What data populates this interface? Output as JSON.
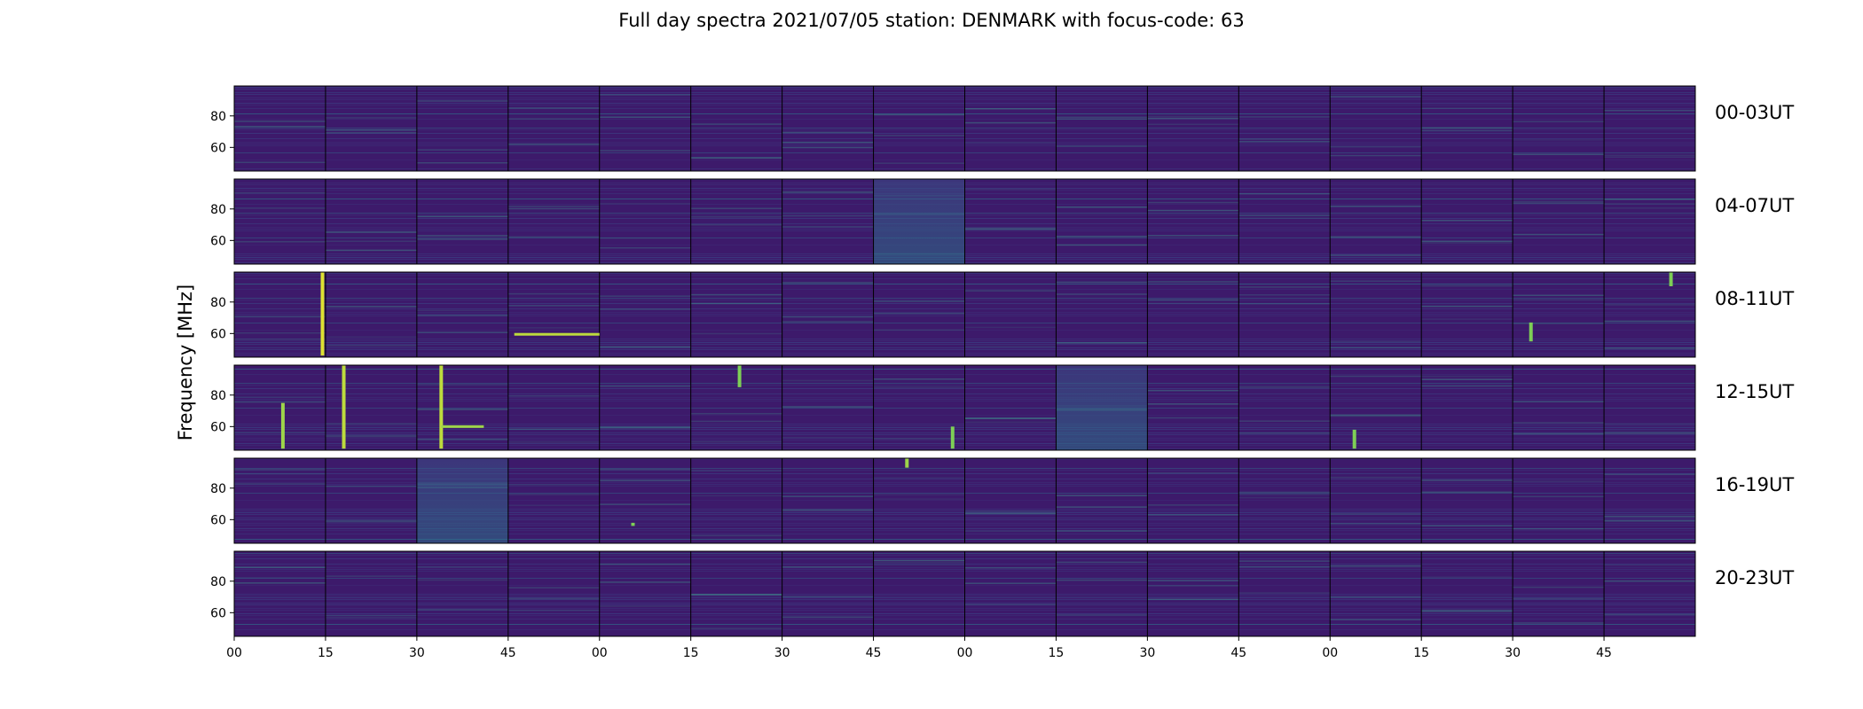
{
  "title": "Full day spectra 2021/07/05 station: DENMARK with focus-code: 63",
  "chart_data": {
    "type": "heatmap",
    "title": "Full day spectra 2021/07/05 station: DENMARK with focus-code: 63",
    "ylabel": "Frequency [MHz]",
    "xlabel": "",
    "ylim": [
      45,
      99
    ],
    "yticks": [
      60,
      80
    ],
    "xtick_labels": [
      "00",
      "15",
      "30",
      "45",
      "00",
      "15",
      "30",
      "45",
      "00",
      "15",
      "30",
      "45",
      "00",
      "15",
      "30",
      "45"
    ],
    "segments_per_row": 16,
    "segment_minutes": 15,
    "colormap": "viridis",
    "rows": [
      {
        "label": "00-03UT",
        "events": []
      },
      {
        "label": "04-07UT",
        "events": []
      },
      {
        "label": "08-11UT",
        "events": [
          {
            "segment": 0,
            "time_min": 14.5,
            "f_lo": 46,
            "f_hi": 99,
            "intensity": 0.95
          },
          {
            "segment": 3,
            "time_min": 1,
            "duration_min": 14,
            "freq": 59.5,
            "intensity": 0.9
          },
          {
            "segment": 14,
            "time_min": 3,
            "f_lo": 55,
            "f_hi": 67,
            "intensity": 0.8
          },
          {
            "segment": 15,
            "time_min": 11,
            "f_lo": 90,
            "f_hi": 99,
            "intensity": 0.8
          }
        ]
      },
      {
        "label": "12-15UT",
        "events": [
          {
            "segment": 0,
            "time_min": 8,
            "f_lo": 46,
            "f_hi": 75,
            "intensity": 0.85
          },
          {
            "segment": 1,
            "time_min": 3,
            "f_lo": 46,
            "f_hi": 99,
            "intensity": 0.9
          },
          {
            "segment": 2,
            "time_min": 4,
            "f_lo": 46,
            "f_hi": 99,
            "intensity": 0.9
          },
          {
            "segment": 2,
            "time_min": 4,
            "duration_min": 7,
            "freq": 60,
            "intensity": 0.85
          },
          {
            "segment": 5,
            "time_min": 8,
            "f_lo": 85,
            "f_hi": 99,
            "intensity": 0.8
          },
          {
            "segment": 7,
            "time_min": 13,
            "f_lo": 46,
            "f_hi": 60,
            "intensity": 0.8
          },
          {
            "segment": 12,
            "time_min": 4,
            "f_lo": 46,
            "f_hi": 58,
            "intensity": 0.8
          }
        ]
      },
      {
        "label": "16-19UT",
        "events": [
          {
            "segment": 4,
            "time_min": 5.5,
            "f_lo": 56,
            "f_hi": 58,
            "intensity": 0.8
          },
          {
            "segment": 7,
            "time_min": 5.5,
            "f_lo": 93,
            "f_hi": 99,
            "intensity": 0.85
          }
        ]
      },
      {
        "label": "20-23UT",
        "events": []
      }
    ]
  }
}
